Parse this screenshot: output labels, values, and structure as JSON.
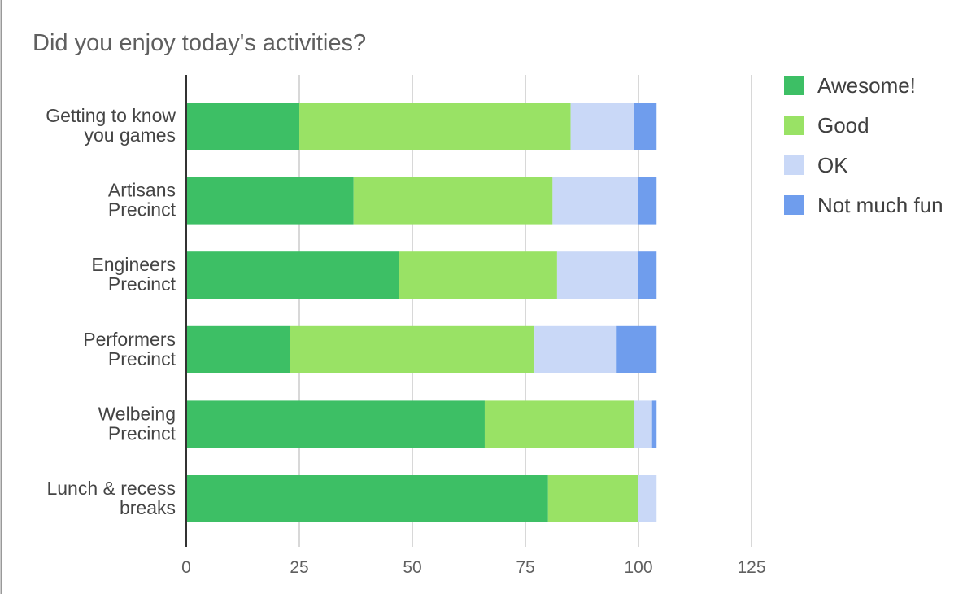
{
  "chart_data": {
    "type": "bar",
    "orientation": "horizontal",
    "stacked": true,
    "title": "Did you enjoy today's activities?",
    "xlabel": "",
    "ylabel": "",
    "xlim": [
      0,
      125
    ],
    "x_ticks": [
      "0",
      "25",
      "50",
      "75",
      "100",
      "125"
    ],
    "grid": true,
    "legend_position": "right",
    "categories": [
      [
        "Getting to know",
        "you games"
      ],
      [
        "Artisans",
        "Precinct"
      ],
      [
        "Engineers",
        "Precinct"
      ],
      [
        "Performers",
        "Precinct"
      ],
      [
        "Welbeing",
        "Precinct"
      ],
      [
        "Lunch & recess",
        "breaks"
      ]
    ],
    "series": [
      {
        "name": "Awesome!",
        "color": "#3dbf65",
        "values": [
          25,
          37,
          47,
          23,
          66,
          80
        ]
      },
      {
        "name": "Good",
        "color": "#99e265",
        "values": [
          60,
          44,
          35,
          54,
          33,
          20
        ]
      },
      {
        "name": "OK",
        "color": "#c9d8f7",
        "values": [
          14,
          19,
          18,
          18,
          4,
          4
        ]
      },
      {
        "name": "Not much fun",
        "color": "#6f9ded",
        "values": [
          5,
          4,
          4,
          9,
          1,
          0
        ]
      }
    ],
    "colors": {
      "axis": "#333333",
      "grid": "#cccccc",
      "frame": "#999999"
    }
  }
}
